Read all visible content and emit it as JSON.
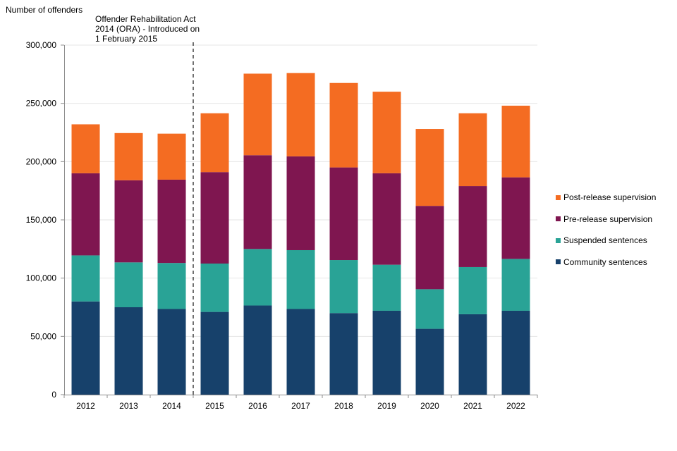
{
  "chart_data": {
    "type": "bar",
    "stacked": true,
    "ylabel": "Number of offenders",
    "xlabel": "",
    "ylim": [
      0,
      300000
    ],
    "yticks": [
      0,
      50000,
      100000,
      150000,
      200000,
      250000,
      300000
    ],
    "ytick_labels": [
      "0",
      "50,000",
      "100,000",
      "150,000",
      "200,000",
      "250,000",
      "300,000"
    ],
    "grid": true,
    "legend_position": "right",
    "categories": [
      "2012",
      "2013",
      "2014",
      "2015",
      "2016",
      "2017",
      "2018",
      "2019",
      "2020",
      "2021",
      "2022"
    ],
    "series": [
      {
        "name": "Community sentences",
        "color": "#17416b",
        "values": [
          80000,
          75000,
          73500,
          71000,
          76500,
          73500,
          70000,
          72000,
          56500,
          69000,
          72000
        ]
      },
      {
        "name": "Suspended sentences",
        "color": "#29a396",
        "values": [
          39500,
          38500,
          39500,
          41500,
          48500,
          50500,
          45500,
          39500,
          34000,
          40500,
          44500
        ]
      },
      {
        "name": "Pre-release supervision",
        "color": "#7f1650",
        "values": [
          70500,
          70500,
          71500,
          78500,
          80500,
          80500,
          79500,
          78500,
          71500,
          69500,
          70000
        ]
      },
      {
        "name": "Post-release supervision",
        "color": "#f46c22",
        "values": [
          42000,
          40500,
          39500,
          50500,
          70000,
          71500,
          72500,
          70000,
          66000,
          62500,
          61500
        ]
      }
    ],
    "annotations": [
      {
        "text": "Offender Rehabilitation Act 2014 (ORA) - Introduced on 1 February 2015",
        "between_categories": [
          "2014",
          "2015"
        ],
        "style": "dashed vertical line"
      }
    ]
  }
}
